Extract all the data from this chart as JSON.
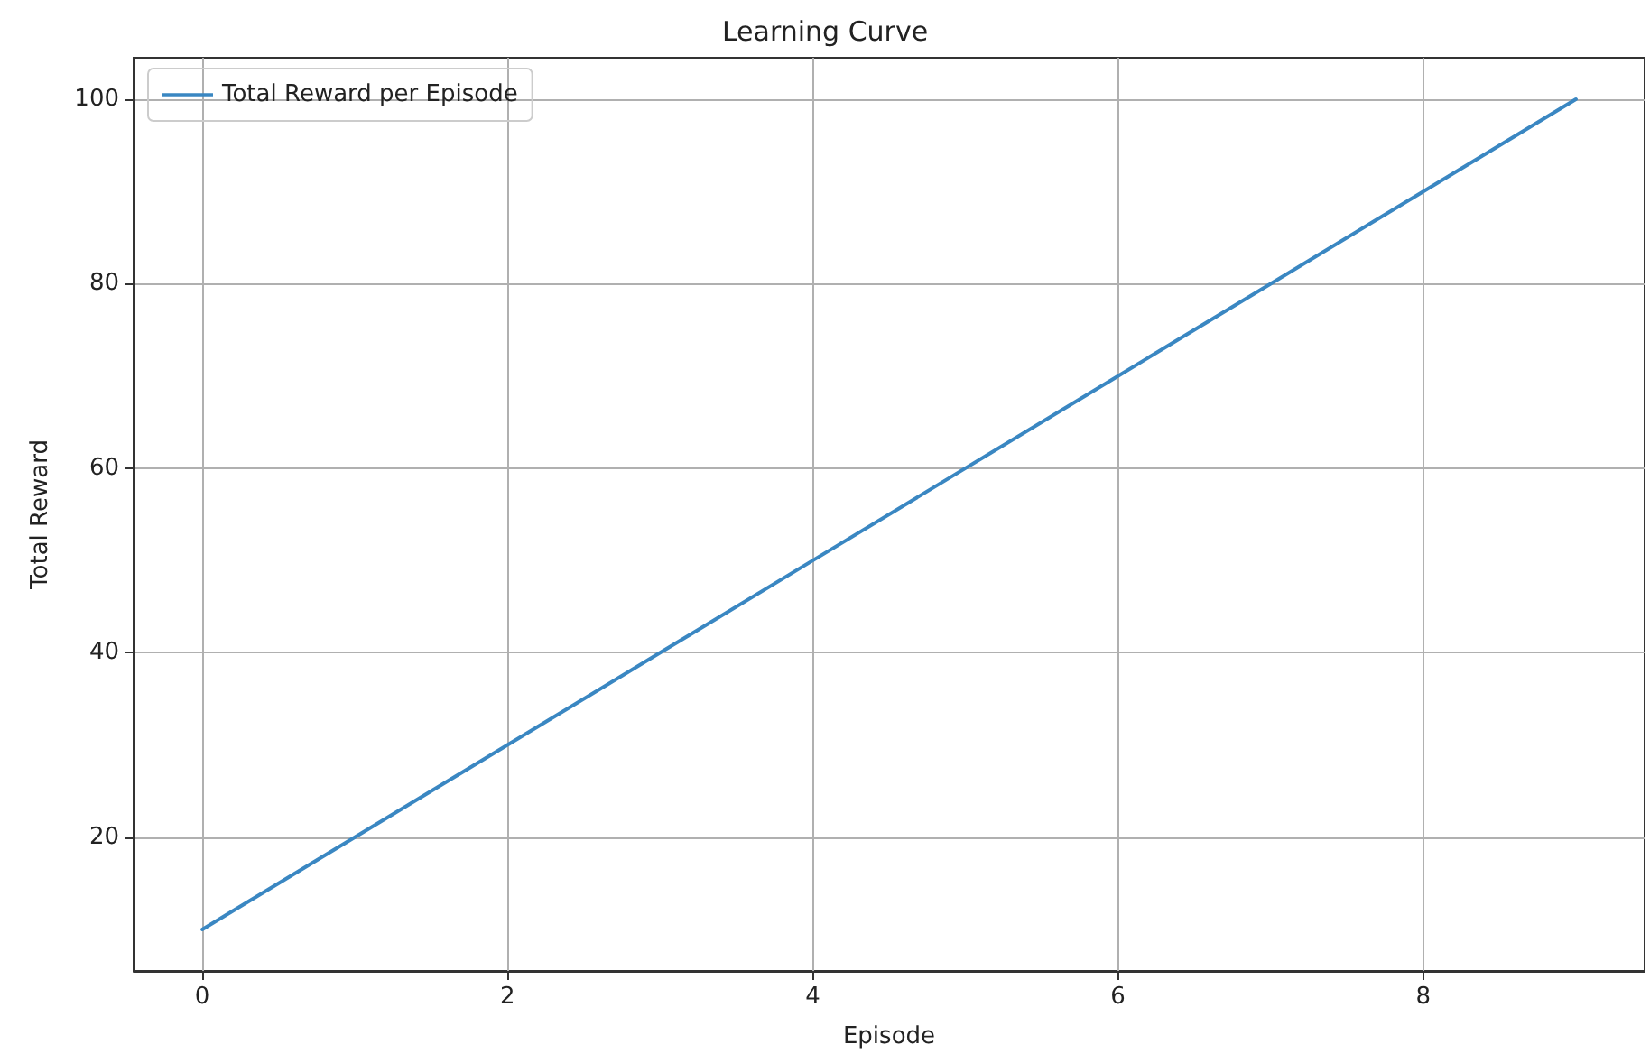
{
  "chart_data": {
    "type": "line",
    "title": "Learning Curve",
    "xlabel": "Episode",
    "ylabel": "Total Reward",
    "x": [
      0,
      1,
      2,
      3,
      4,
      5,
      6,
      7,
      8,
      9
    ],
    "series": [
      {
        "name": "Total Reward per Episode",
        "color": "#3a87c2",
        "values": [
          10,
          20,
          30,
          40,
          50,
          60,
          70,
          80,
          90,
          100
        ]
      }
    ],
    "xlim": [
      -0.45,
      9.45
    ],
    "ylim": [
      5.5,
      104.5
    ],
    "xticks": [
      0,
      2,
      4,
      6,
      8
    ],
    "yticks": [
      20,
      40,
      60,
      80,
      100
    ],
    "grid": true,
    "legend": "top left",
    "marker": "none",
    "line_style": "solid"
  }
}
